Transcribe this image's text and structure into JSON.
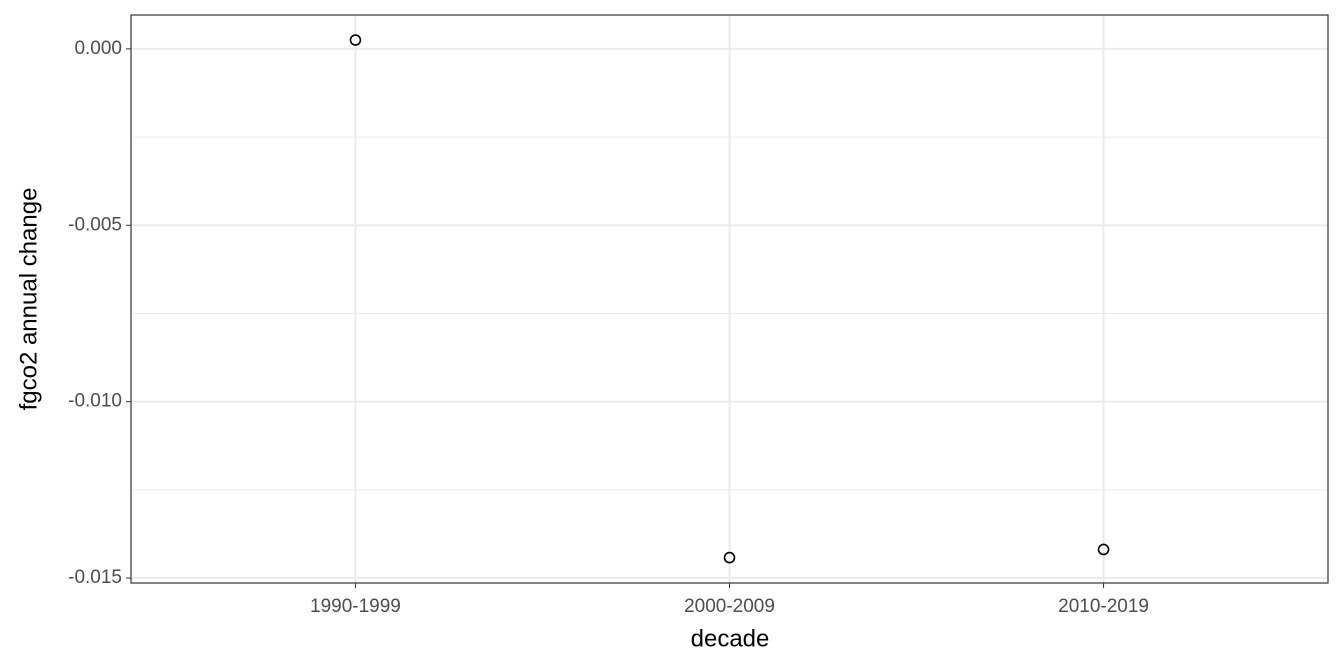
{
  "chart_data": {
    "type": "scatter",
    "x_label": "decade",
    "y_label": "fgco2 annual change",
    "categories": [
      "1990-1999",
      "2000-2009",
      "2010-2019"
    ],
    "values": [
      0.00025,
      -0.01442,
      -0.01419
    ],
    "color": "#000000",
    "ylim": [
      -0.01514,
      0.00096
    ],
    "yticks": [
      {
        "value": 0,
        "label": "0.000"
      },
      {
        "value": -0.005,
        "label": "-0.005"
      },
      {
        "value": -0.01,
        "label": "-0.010"
      },
      {
        "value": -0.015,
        "label": "-0.015"
      }
    ],
    "grid": true
  }
}
